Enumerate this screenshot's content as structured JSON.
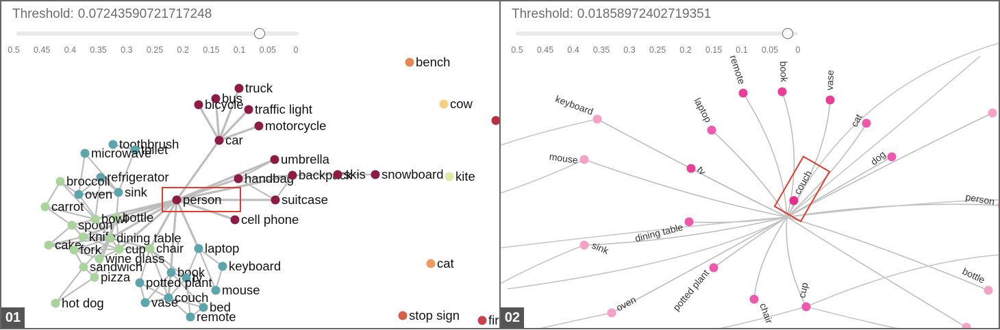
{
  "panel1": {
    "badge": "01",
    "threshold_label": "Threshold:",
    "threshold_value": "0.07243590721717248",
    "slider_fraction": 0.86,
    "ticks": [
      "0.5",
      "0.45",
      "0.4",
      "0.35",
      "0.3",
      "0.25",
      "0.2",
      "0.15",
      "0.1",
      "0.05",
      "0"
    ],
    "nodes": [
      {
        "id": "bench",
        "label": "bench",
        "color": "#e08a58"
      },
      {
        "id": "cow",
        "label": "cow",
        "color": "#f6cf7e"
      },
      {
        "id": "cat",
        "label": "cat",
        "color": "#ee9a5e"
      },
      {
        "id": "stop sign",
        "label": "stop sign",
        "color": "#d86049"
      },
      {
        "id": "fire",
        "label": "fir",
        "color": "#c7424a"
      },
      {
        "id": "edge",
        "label": "",
        "color": "#b83048"
      },
      {
        "id": "truck",
        "label": "truck",
        "color": "#8e1b43"
      },
      {
        "id": "bus",
        "label": "bus",
        "color": "#8e1b43"
      },
      {
        "id": "bicycle",
        "label": "bicycle",
        "color": "#8e1b43"
      },
      {
        "id": "traffic light",
        "label": "traffic light",
        "color": "#8e1b43"
      },
      {
        "id": "motorcycle",
        "label": "motorcycle",
        "color": "#8e1b43"
      },
      {
        "id": "car",
        "label": "car",
        "color": "#8e1b43"
      },
      {
        "id": "umbrella",
        "label": "umbrella",
        "color": "#8e1b43"
      },
      {
        "id": "handbag",
        "label": "handbag",
        "color": "#8e1b43"
      },
      {
        "id": "backpack",
        "label": "backpack",
        "color": "#8e1b43"
      },
      {
        "id": "skis",
        "label": "skis",
        "color": "#8e1b43"
      },
      {
        "id": "snowboard",
        "label": "snowboard",
        "color": "#8e1b43"
      },
      {
        "id": "kite",
        "label": "kite",
        "color": "#dfeaa7"
      },
      {
        "id": "suitcase",
        "label": "suitcase",
        "color": "#8e1b43"
      },
      {
        "id": "person",
        "label": "person",
        "color": "#8e1b43"
      },
      {
        "id": "cell phone",
        "label": "cell phone",
        "color": "#8e1b43"
      },
      {
        "id": "toothbrush",
        "label": "toothbrush",
        "color": "#5da5ad"
      },
      {
        "id": "toilet",
        "label": "toilet",
        "color": "#5da5ad"
      },
      {
        "id": "microwave",
        "label": "microwave",
        "color": "#5da5ad"
      },
      {
        "id": "refrigerator",
        "label": "refrigerator",
        "color": "#5da5ad"
      },
      {
        "id": "broccoli",
        "label": "broccoli",
        "color": "#a9d49b"
      },
      {
        "id": "oven",
        "label": "oven",
        "color": "#5da5ad"
      },
      {
        "id": "sink",
        "label": "sink",
        "color": "#5da5ad"
      },
      {
        "id": "carrot",
        "label": "carrot",
        "color": "#a9d49b"
      },
      {
        "id": "bottle",
        "label": "bottle",
        "color": "#a9d49b"
      },
      {
        "id": "spoon",
        "label": "spoon",
        "color": "#a9d49b"
      },
      {
        "id": "bowl",
        "label": "bowl",
        "color": "#a9d49b"
      },
      {
        "id": "knife",
        "label": "knife",
        "color": "#a9d49b"
      },
      {
        "id": "dining table",
        "label": "dining table",
        "color": "#a9d49b"
      },
      {
        "id": "cake",
        "label": "cake",
        "color": "#a9d49b"
      },
      {
        "id": "fork",
        "label": "fork",
        "color": "#a9d49b"
      },
      {
        "id": "cup",
        "label": "cup",
        "color": "#a9d49b"
      },
      {
        "id": "chair",
        "label": "chair",
        "color": "#a9d49b"
      },
      {
        "id": "wine glass",
        "label": "wine glass",
        "color": "#a9d49b"
      },
      {
        "id": "sandwich",
        "label": "sandwich",
        "color": "#a9d49b"
      },
      {
        "id": "pizza",
        "label": "pizza",
        "color": "#a9d49b"
      },
      {
        "id": "hot dog",
        "label": "hot dog",
        "color": "#a9d49b"
      },
      {
        "id": "laptop",
        "label": "laptop",
        "color": "#5da5ad"
      },
      {
        "id": "keyboard",
        "label": "keyboard",
        "color": "#5da5ad"
      },
      {
        "id": "book",
        "label": "book",
        "color": "#5da5ad"
      },
      {
        "id": "tv",
        "label": "tv",
        "color": "#5da5ad"
      },
      {
        "id": "potted plant",
        "label": "potted plant",
        "color": "#5da5ad"
      },
      {
        "id": "mouse",
        "label": "mouse",
        "color": "#5da5ad"
      },
      {
        "id": "vase",
        "label": "vase",
        "color": "#5da5ad"
      },
      {
        "id": "couch",
        "label": "couch",
        "color": "#5da5ad"
      },
      {
        "id": "bed",
        "label": "bed",
        "color": "#5da5ad"
      },
      {
        "id": "remote",
        "label": "remote",
        "color": "#5da5ad"
      }
    ],
    "edges": [
      [
        "person",
        "car"
      ],
      [
        "person",
        "handbag"
      ],
      [
        "person",
        "dining table"
      ],
      [
        "person",
        "chair"
      ],
      [
        "person",
        "cup"
      ],
      [
        "person",
        "bottle"
      ],
      [
        "person",
        "cell phone"
      ],
      [
        "person",
        "suitcase"
      ],
      [
        "person",
        "umbrella"
      ],
      [
        "person",
        "backpack"
      ],
      [
        "person",
        "knife"
      ],
      [
        "person",
        "bowl"
      ],
      [
        "person",
        "laptop"
      ],
      [
        "person",
        "couch"
      ],
      [
        "car",
        "truck"
      ],
      [
        "car",
        "bus"
      ],
      [
        "car",
        "bicycle"
      ],
      [
        "car",
        "traffic light"
      ],
      [
        "car",
        "motorcycle"
      ],
      [
        "handbag",
        "umbrella"
      ],
      [
        "handbag",
        "backpack"
      ],
      [
        "handbag",
        "suitcase"
      ],
      [
        "backpack",
        "suitcase"
      ],
      [
        "backpack",
        "skis"
      ],
      [
        "skis",
        "snowboard"
      ],
      [
        "dining table",
        "chair"
      ],
      [
        "dining table",
        "cup"
      ],
      [
        "dining table",
        "bowl"
      ],
      [
        "dining table",
        "knife"
      ],
      [
        "dining table",
        "fork"
      ],
      [
        "dining table",
        "spoon"
      ],
      [
        "dining table",
        "wine glass"
      ],
      [
        "dining table",
        "bottle"
      ],
      [
        "dining table",
        "pizza"
      ],
      [
        "dining table",
        "cake"
      ],
      [
        "dining table",
        "sandwich"
      ],
      [
        "dining table",
        "oven"
      ],
      [
        "chair",
        "couch"
      ],
      [
        "chair",
        "potted plant"
      ],
      [
        "chair",
        "tv"
      ],
      [
        "chair",
        "book"
      ],
      [
        "couch",
        "potted plant"
      ],
      [
        "couch",
        "tv"
      ],
      [
        "couch",
        "remote"
      ],
      [
        "couch",
        "bed"
      ],
      [
        "couch",
        "vase"
      ],
      [
        "tv",
        "remote"
      ],
      [
        "tv",
        "book"
      ],
      [
        "laptop",
        "keyboard"
      ],
      [
        "laptop",
        "mouse"
      ],
      [
        "laptop",
        "tv"
      ],
      [
        "keyboard",
        "mouse"
      ],
      [
        "potted plant",
        "vase"
      ],
      [
        "book",
        "vase"
      ],
      [
        "book",
        "bed"
      ],
      [
        "bed",
        "remote"
      ],
      [
        "oven",
        "sink"
      ],
      [
        "oven",
        "refrigerator"
      ],
      [
        "oven",
        "microwave"
      ],
      [
        "sink",
        "refrigerator"
      ],
      [
        "sink",
        "microwave"
      ],
      [
        "sink",
        "toilet"
      ],
      [
        "toilet",
        "toothbrush"
      ],
      [
        "sink",
        "bottle"
      ],
      [
        "refrigerator",
        "bowl"
      ],
      [
        "broccoli",
        "carrot"
      ],
      [
        "broccoli",
        "bowl"
      ],
      [
        "broccoli",
        "oven"
      ],
      [
        "carrot",
        "bowl"
      ],
      [
        "carrot",
        "spoon"
      ],
      [
        "cake",
        "spoon"
      ],
      [
        "cake",
        "fork"
      ],
      [
        "cake",
        "knife"
      ],
      [
        "knife",
        "fork"
      ],
      [
        "knife",
        "spoon"
      ],
      [
        "bowl",
        "spoon"
      ],
      [
        "bowl",
        "cup"
      ],
      [
        "cup",
        "wine glass"
      ],
      [
        "cup",
        "fork"
      ],
      [
        "bottle",
        "cup"
      ],
      [
        "bottle",
        "wine glass"
      ],
      [
        "sandwich",
        "pizza"
      ],
      [
        "sandwich",
        "fork"
      ],
      [
        "pizza",
        "hot dog"
      ],
      [
        "sandwich",
        "hot dog"
      ],
      [
        "wine glass",
        "fork"
      ],
      [
        "cup",
        "knife"
      ],
      [
        "chair",
        "cup"
      ],
      [
        "microwave",
        "toaster"
      ]
    ]
  },
  "panel2": {
    "badge": "02",
    "threshold_label": "Threshold:",
    "threshold_value": "0.01858972402719351",
    "slider_fraction": 0.96,
    "ticks": [
      "0.5",
      "0.45",
      "0.4",
      "0.35",
      "0.3",
      "0.25",
      "0.2",
      "0.15",
      "0.1",
      "0.05",
      "0"
    ],
    "nodes": [
      {
        "id": "keyboard",
        "label": "keyboard",
        "color": "#f6a1c6"
      },
      {
        "id": "mouse",
        "label": "mouse",
        "color": "#f6a1c6"
      },
      {
        "id": "laptop",
        "label": "laptop",
        "color": "#ef59ad"
      },
      {
        "id": "remote",
        "label": "remote",
        "color": "#ea3f99"
      },
      {
        "id": "book",
        "label": "book",
        "color": "#ea3f99"
      },
      {
        "id": "vase",
        "label": "vase",
        "color": "#ea3f99"
      },
      {
        "id": "cat",
        "label": "cat",
        "color": "#ef59ad"
      },
      {
        "id": "dog",
        "label": "dog",
        "color": "#ef59ad"
      },
      {
        "id": "tv",
        "label": "tv",
        "color": "#ea3f99"
      },
      {
        "id": "couch",
        "label": "couch",
        "color": "#e62c8e"
      },
      {
        "id": "dining table",
        "label": "dining table",
        "color": "#ef59ad"
      },
      {
        "id": "sink",
        "label": "sink",
        "color": "#f6a1c6"
      },
      {
        "id": "potted plant",
        "label": "potted plant",
        "color": "#ef59ad"
      },
      {
        "id": "oven",
        "label": "oven",
        "color": "#f6a1c6"
      },
      {
        "id": "chair",
        "label": "chair",
        "color": "#ef59ad"
      },
      {
        "id": "cup",
        "label": "cup",
        "color": "#ef59ad"
      },
      {
        "id": "person",
        "label": "person",
        "color": "#f6a1c6"
      },
      {
        "id": "bottle",
        "label": "bottle",
        "color": "#f6a1c6"
      },
      {
        "id": "frag",
        "label": "",
        "color": "#f6a1c6"
      },
      {
        "id": "bottom",
        "label": "",
        "color": "#f6a1c6"
      }
    ],
    "highlight_label": "couch"
  }
}
